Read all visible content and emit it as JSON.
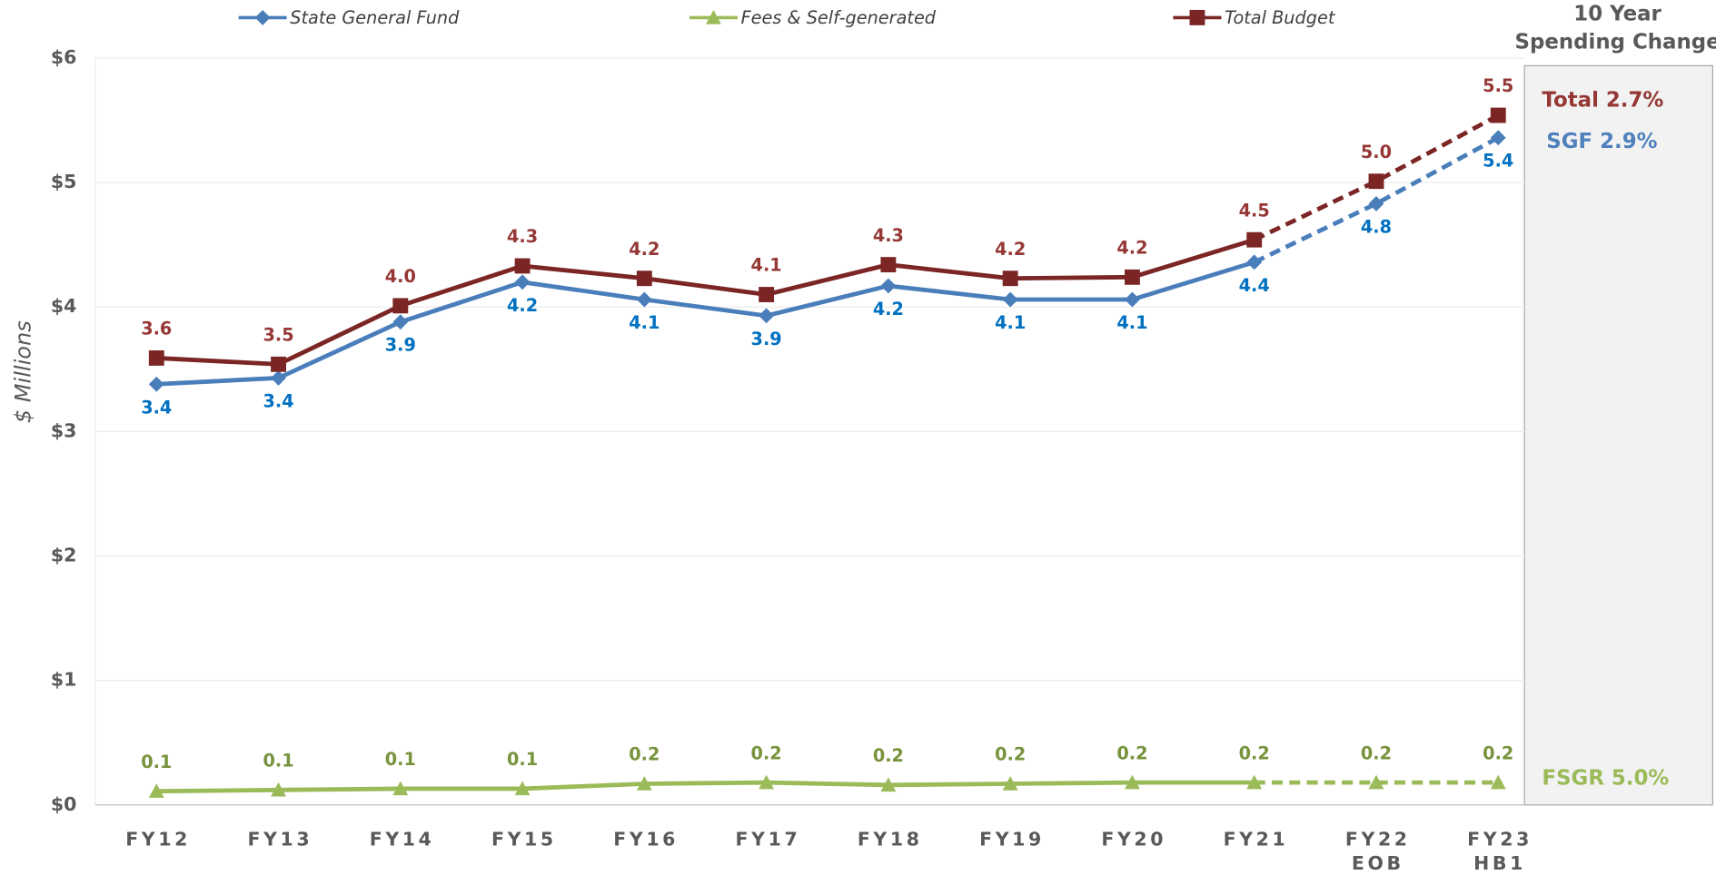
{
  "chart_data": {
    "type": "line",
    "y_label": "$ Millions",
    "panel_title": [
      "10 Year",
      "Spending Change"
    ],
    "categories": [
      [
        "FY12"
      ],
      [
        "FY13"
      ],
      [
        "FY14"
      ],
      [
        "FY15"
      ],
      [
        "FY16"
      ],
      [
        "FY17"
      ],
      [
        "FY18"
      ],
      [
        "FY19"
      ],
      [
        "FY20"
      ],
      [
        "FY21"
      ],
      [
        "FY22",
        "EOB"
      ],
      [
        "FY23",
        "HB1"
      ]
    ],
    "dashed_after": "FY21",
    "ylim": [
      0,
      6
    ],
    "yticks": [
      {
        "value": 0,
        "label": "$0"
      },
      {
        "value": 1,
        "label": "$1"
      },
      {
        "value": 2,
        "label": "$2"
      },
      {
        "value": 3,
        "label": "$3"
      },
      {
        "value": 4,
        "label": "$4"
      },
      {
        "value": 5,
        "label": "$5"
      },
      {
        "value": 6,
        "label": "$6"
      }
    ],
    "grid": true,
    "series": [
      {
        "name": "State General Fund",
        "color": "#4a7ebb",
        "label_color": "#0070c0",
        "marker": "diamond",
        "label_position": "below",
        "values": [
          3.38,
          3.43,
          3.88,
          4.2,
          4.06,
          3.93,
          4.17,
          4.06,
          4.06,
          4.36,
          4.83,
          5.36
        ],
        "value_labels": [
          "3.4",
          "3.4",
          "3.9",
          "4.2",
          "4.1",
          "3.9",
          "4.2",
          "4.1",
          "4.1",
          "4.4",
          "4.8",
          "5.4"
        ]
      },
      {
        "name": "Fees & Self-generated",
        "color": "#9bbb59",
        "label_color": "#77933c",
        "marker": "triangle",
        "label_position": "above",
        "values": [
          0.11,
          0.12,
          0.13,
          0.13,
          0.17,
          0.18,
          0.16,
          0.17,
          0.18,
          0.18,
          0.18,
          0.18
        ],
        "value_labels": [
          "0.1",
          "0.1",
          "0.1",
          "0.1",
          "0.2",
          "0.2",
          "0.2",
          "0.2",
          "0.2",
          "0.2",
          "0.2",
          "0.2"
        ]
      },
      {
        "name": "Total Budget",
        "color": "#7b2525",
        "label_color": "#953735",
        "marker": "square",
        "label_position": "above",
        "values": [
          3.59,
          3.54,
          4.01,
          4.33,
          4.23,
          4.1,
          4.34,
          4.23,
          4.24,
          4.54,
          5.01,
          5.54
        ],
        "value_labels": [
          "3.6",
          "3.5",
          "4.0",
          "4.3",
          "4.2",
          "4.1",
          "4.3",
          "4.2",
          "4.2",
          "4.5",
          "5.0",
          "5.5"
        ]
      }
    ],
    "annotations": [
      {
        "text": "Total 2.7%",
        "color": "#953735"
      },
      {
        "text": "SGF 2.9%",
        "color": "#4f81bd"
      },
      {
        "text": "FSGR 5.0%",
        "color": "#9bbb59"
      }
    ]
  }
}
